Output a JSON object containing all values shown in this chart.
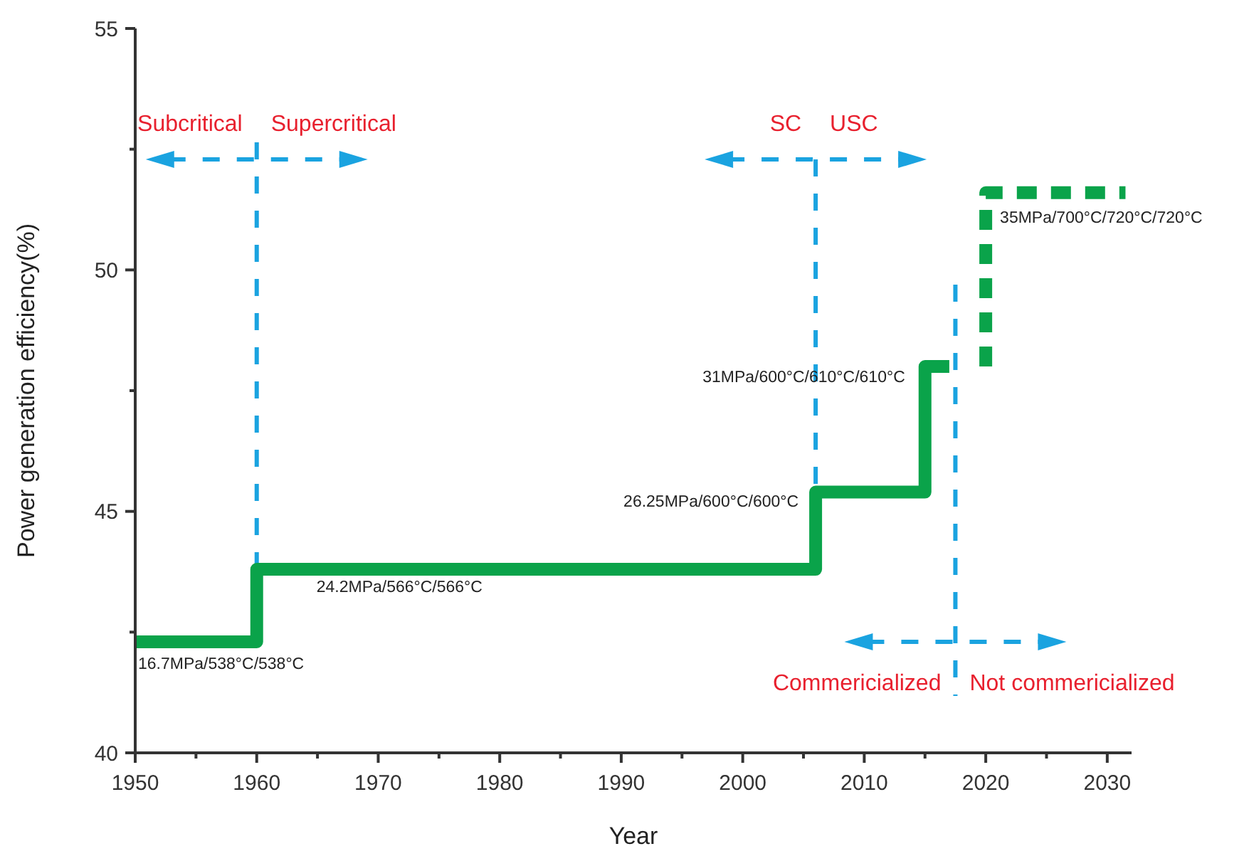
{
  "chart_data": {
    "type": "step",
    "xlabel": "Year",
    "ylabel": "Power generation efficiency(%)",
    "xlim": [
      1950,
      2032
    ],
    "xticks": [
      1950,
      1960,
      1970,
      1980,
      1990,
      2000,
      2010,
      2020,
      2030
    ],
    "ylim": [
      40,
      55
    ],
    "yticks": [
      40,
      {
        "value": 42.5,
        "label": null
      },
      45,
      {
        "value": 47.5,
        "label": null
      },
      50,
      {
        "value": 52.5,
        "label": null
      },
      55
    ],
    "grid": false,
    "series": [
      {
        "type": "step",
        "color": "#0aa34a",
        "line_style": "solid",
        "x": [
          1950,
          1960,
          2006,
          2015,
          2017
        ],
        "values": [
          42.3,
          43.8,
          45.4,
          48,
          48
        ]
      },
      {
        "type": "line",
        "color": "#0aa34a",
        "line_style": "dashed",
        "x": [
          2020,
          2020,
          2031.5
        ],
        "values": [
          48,
          51.6,
          51.6
        ]
      }
    ],
    "ref_lines": [
      {
        "axis": "x",
        "value": 1960,
        "color": "#1aa3e0",
        "line_style": "dashed"
      },
      {
        "axis": "x",
        "value": 2006,
        "color": "#1aa3e0",
        "line_style": "dashed"
      },
      {
        "axis": "x",
        "value": 2017.5,
        "color": "#1aa3e0",
        "line_style": "dashed"
      }
    ],
    "annotations": [
      "16.7MPa/538°C/538°C",
      "24.2MPa/566°C/566°C",
      "26.25MPa/600°C/600°C",
      "31MPa/600°C/610°C/610°C",
      "35MPa/700°C/720°C/720°C",
      "Subcritical",
      "Supercritical",
      "SC",
      "USC",
      "Commericialized",
      "Not commericialized"
    ]
  }
}
